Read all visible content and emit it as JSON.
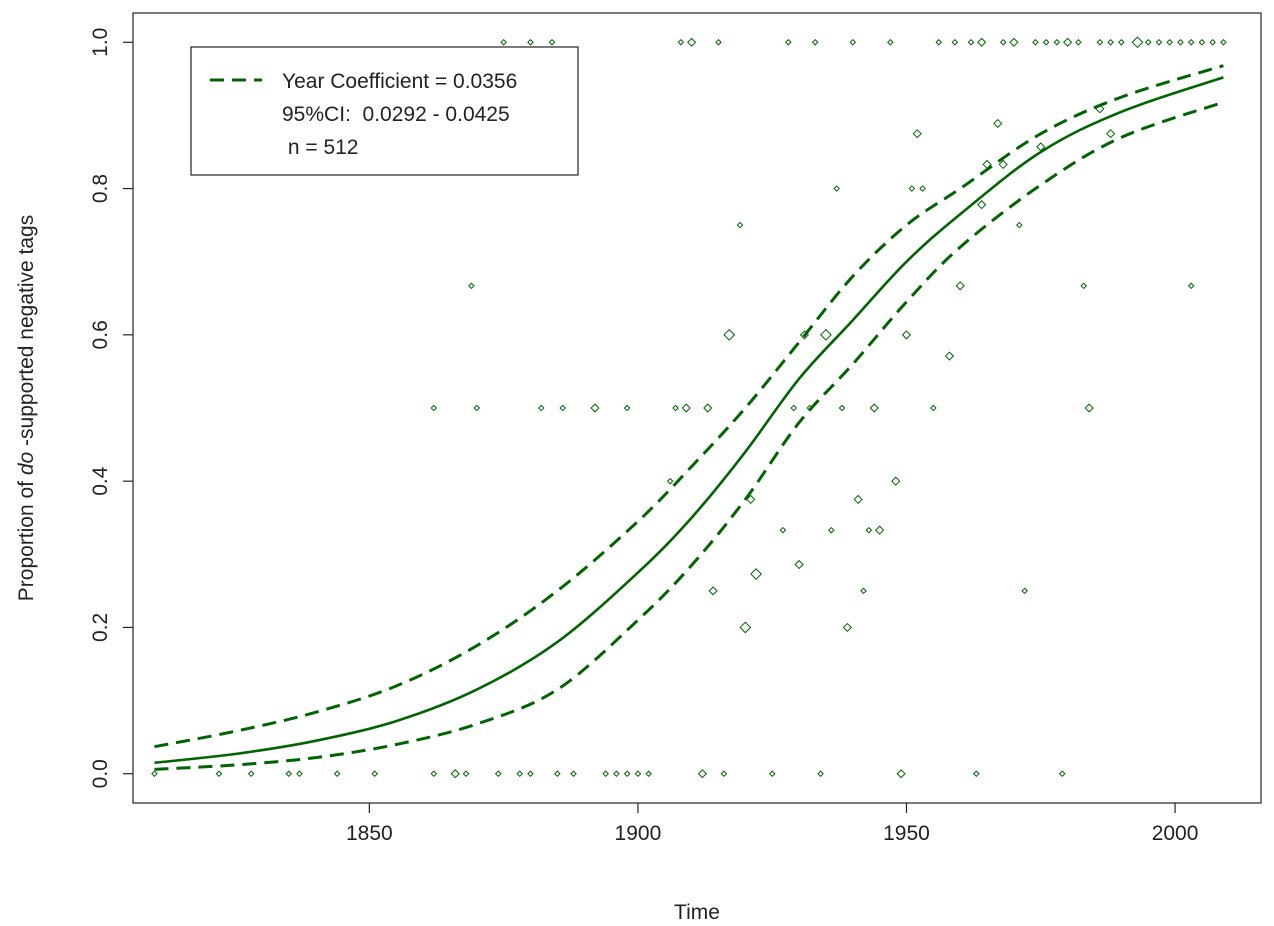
{
  "chart_data": {
    "type": "scatter",
    "title": "",
    "xlabel": "Time",
    "ylabel_prefix": "Proportion of ",
    "ylabel_italic": "do",
    "ylabel_suffix": " -supported negative tags",
    "xlim": [
      1806,
      2016
    ],
    "ylim": [
      -0.04,
      1.04
    ],
    "x_ticks": [
      1850,
      1900,
      1950,
      2000
    ],
    "y_ticks": [
      0.0,
      0.2,
      0.4,
      0.6,
      0.8,
      1.0
    ],
    "y_tick_labels": [
      "0.0",
      "0.2",
      "0.4",
      "0.6",
      "0.8",
      "1.0"
    ],
    "grid": false,
    "color": "#006400",
    "legend": {
      "position": "top-left",
      "lines": [
        "Year Coefficient = 0.0356",
        "95%CI:  0.0292 - 0.0425",
        " n = 512"
      ]
    },
    "model": {
      "type": "logistic",
      "year_coefficient": 0.0356,
      "ci_low": 0.0292,
      "ci_high": 0.0425,
      "n": 512,
      "x_range": [
        1810,
        2009
      ]
    },
    "fit_curve": {
      "x": [
        1810,
        1825,
        1840,
        1855,
        1870,
        1885,
        1900,
        1910,
        1920,
        1930,
        1940,
        1950,
        1960,
        1975,
        1990,
        2009
      ],
      "y": [
        0.015,
        0.027,
        0.045,
        0.072,
        0.115,
        0.18,
        0.275,
        0.35,
        0.44,
        0.54,
        0.62,
        0.7,
        0.765,
        0.85,
        0.905,
        0.952
      ]
    },
    "ci_upper": {
      "x": [
        1810,
        1825,
        1840,
        1855,
        1870,
        1885,
        1900,
        1910,
        1920,
        1930,
        1940,
        1950,
        1960,
        1975,
        1990,
        2009
      ],
      "y": [
        0.037,
        0.058,
        0.084,
        0.12,
        0.175,
        0.25,
        0.345,
        0.42,
        0.5,
        0.59,
        0.68,
        0.75,
        0.8,
        0.875,
        0.925,
        0.968
      ]
    },
    "ci_lower": {
      "x": [
        1810,
        1825,
        1840,
        1855,
        1870,
        1885,
        1900,
        1910,
        1920,
        1930,
        1940,
        1950,
        1960,
        1975,
        1990,
        2009
      ],
      "y": [
        0.006,
        0.012,
        0.022,
        0.04,
        0.068,
        0.115,
        0.21,
        0.285,
        0.375,
        0.48,
        0.56,
        0.645,
        0.72,
        0.805,
        0.87,
        0.918
      ]
    },
    "points": [
      {
        "x": 1810,
        "y": 0,
        "size": 1
      },
      {
        "x": 1822,
        "y": 0,
        "size": 1
      },
      {
        "x": 1828,
        "y": 0,
        "size": 1
      },
      {
        "x": 1835,
        "y": 0,
        "size": 1
      },
      {
        "x": 1837,
        "y": 0,
        "size": 1
      },
      {
        "x": 1844,
        "y": 0,
        "size": 1
      },
      {
        "x": 1851,
        "y": 0,
        "size": 1
      },
      {
        "x": 1862,
        "y": 0,
        "size": 1
      },
      {
        "x": 1866,
        "y": 0,
        "size": 1.5
      },
      {
        "x": 1868,
        "y": 0,
        "size": 1
      },
      {
        "x": 1874,
        "y": 0,
        "size": 1
      },
      {
        "x": 1878,
        "y": 0,
        "size": 1
      },
      {
        "x": 1880,
        "y": 0,
        "size": 1
      },
      {
        "x": 1885,
        "y": 0,
        "size": 1
      },
      {
        "x": 1888,
        "y": 0,
        "size": 1
      },
      {
        "x": 1894,
        "y": 0,
        "size": 1
      },
      {
        "x": 1896,
        "y": 0,
        "size": 1
      },
      {
        "x": 1898,
        "y": 0,
        "size": 1
      },
      {
        "x": 1900,
        "y": 0,
        "size": 1
      },
      {
        "x": 1902,
        "y": 0,
        "size": 1
      },
      {
        "x": 1912,
        "y": 0,
        "size": 1.5
      },
      {
        "x": 1916,
        "y": 0,
        "size": 1
      },
      {
        "x": 1925,
        "y": 0,
        "size": 1
      },
      {
        "x": 1934,
        "y": 0,
        "size": 1
      },
      {
        "x": 1949,
        "y": 0,
        "size": 1.5
      },
      {
        "x": 1963,
        "y": 0,
        "size": 1
      },
      {
        "x": 1979,
        "y": 0,
        "size": 1
      },
      {
        "x": 1875,
        "y": 1,
        "size": 1
      },
      {
        "x": 1880,
        "y": 1,
        "size": 1
      },
      {
        "x": 1884,
        "y": 1,
        "size": 1
      },
      {
        "x": 1908,
        "y": 1,
        "size": 1
      },
      {
        "x": 1910,
        "y": 1,
        "size": 1.5
      },
      {
        "x": 1915,
        "y": 1,
        "size": 1
      },
      {
        "x": 1928,
        "y": 1,
        "size": 1
      },
      {
        "x": 1933,
        "y": 1,
        "size": 1
      },
      {
        "x": 1940,
        "y": 1,
        "size": 1
      },
      {
        "x": 1947,
        "y": 1,
        "size": 1
      },
      {
        "x": 1956,
        "y": 1,
        "size": 1
      },
      {
        "x": 1959,
        "y": 1,
        "size": 1
      },
      {
        "x": 1962,
        "y": 1,
        "size": 1
      },
      {
        "x": 1964,
        "y": 1,
        "size": 1.5
      },
      {
        "x": 1968,
        "y": 1,
        "size": 1
      },
      {
        "x": 1970,
        "y": 1,
        "size": 1.5
      },
      {
        "x": 1974,
        "y": 1,
        "size": 1
      },
      {
        "x": 1976,
        "y": 1,
        "size": 1
      },
      {
        "x": 1978,
        "y": 1,
        "size": 1
      },
      {
        "x": 1980,
        "y": 1,
        "size": 1.5
      },
      {
        "x": 1982,
        "y": 1,
        "size": 1
      },
      {
        "x": 1986,
        "y": 1,
        "size": 1
      },
      {
        "x": 1988,
        "y": 1,
        "size": 1
      },
      {
        "x": 1990,
        "y": 1,
        "size": 1
      },
      {
        "x": 1993,
        "y": 1,
        "size": 2
      },
      {
        "x": 1995,
        "y": 1,
        "size": 1
      },
      {
        "x": 1997,
        "y": 1,
        "size": 1
      },
      {
        "x": 1999,
        "y": 1,
        "size": 1
      },
      {
        "x": 2001,
        "y": 1,
        "size": 1
      },
      {
        "x": 2003,
        "y": 1,
        "size": 1
      },
      {
        "x": 2005,
        "y": 1,
        "size": 1
      },
      {
        "x": 2007,
        "y": 1,
        "size": 1
      },
      {
        "x": 2009,
        "y": 1,
        "size": 1
      },
      {
        "x": 1862,
        "y": 0.5,
        "size": 1
      },
      {
        "x": 1870,
        "y": 0.5,
        "size": 1
      },
      {
        "x": 1882,
        "y": 0.5,
        "size": 1
      },
      {
        "x": 1886,
        "y": 0.5,
        "size": 1
      },
      {
        "x": 1892,
        "y": 0.5,
        "size": 1.5
      },
      {
        "x": 1898,
        "y": 0.5,
        "size": 1
      },
      {
        "x": 1907,
        "y": 0.5,
        "size": 1
      },
      {
        "x": 1909,
        "y": 0.5,
        "size": 1.5
      },
      {
        "x": 1913,
        "y": 0.5,
        "size": 1.5
      },
      {
        "x": 1929,
        "y": 0.5,
        "size": 1
      },
      {
        "x": 1932,
        "y": 0.5,
        "size": 1
      },
      {
        "x": 1938,
        "y": 0.5,
        "size": 1
      },
      {
        "x": 1944,
        "y": 0.5,
        "size": 1.5
      },
      {
        "x": 1955,
        "y": 0.5,
        "size": 1
      },
      {
        "x": 1984,
        "y": 0.5,
        "size": 1.5
      },
      {
        "x": 1869,
        "y": 0.667,
        "size": 1
      },
      {
        "x": 1960,
        "y": 0.667,
        "size": 1.5
      },
      {
        "x": 1983,
        "y": 0.667,
        "size": 1
      },
      {
        "x": 2003,
        "y": 0.667,
        "size": 1
      },
      {
        "x": 1919,
        "y": 0.75,
        "size": 1
      },
      {
        "x": 1971,
        "y": 0.75,
        "size": 1
      },
      {
        "x": 1937,
        "y": 0.8,
        "size": 1
      },
      {
        "x": 1951,
        "y": 0.8,
        "size": 1
      },
      {
        "x": 1953,
        "y": 0.8,
        "size": 1
      },
      {
        "x": 1917,
        "y": 0.6,
        "size": 2
      },
      {
        "x": 1931,
        "y": 0.6,
        "size": 1.5
      },
      {
        "x": 1935,
        "y": 0.6,
        "size": 2
      },
      {
        "x": 1950,
        "y": 0.6,
        "size": 1.5
      },
      {
        "x": 1958,
        "y": 0.571,
        "size": 1.5
      },
      {
        "x": 1952,
        "y": 0.875,
        "size": 1.5
      },
      {
        "x": 1967,
        "y": 0.889,
        "size": 1.5
      },
      {
        "x": 1965,
        "y": 0.833,
        "size": 1.5
      },
      {
        "x": 1968,
        "y": 0.833,
        "size": 1.5
      },
      {
        "x": 1964,
        "y": 0.778,
        "size": 1.5
      },
      {
        "x": 1975,
        "y": 0.857,
        "size": 1.5
      },
      {
        "x": 1986,
        "y": 0.909,
        "size": 1.5
      },
      {
        "x": 1988,
        "y": 0.875,
        "size": 1.5
      },
      {
        "x": 1906,
        "y": 0.4,
        "size": 1
      },
      {
        "x": 1948,
        "y": 0.4,
        "size": 1.5
      },
      {
        "x": 1921,
        "y": 0.375,
        "size": 1.5
      },
      {
        "x": 1941,
        "y": 0.375,
        "size": 1.5
      },
      {
        "x": 1927,
        "y": 0.333,
        "size": 1
      },
      {
        "x": 1936,
        "y": 0.333,
        "size": 1
      },
      {
        "x": 1943,
        "y": 0.333,
        "size": 1
      },
      {
        "x": 1945,
        "y": 0.333,
        "size": 1.5
      },
      {
        "x": 1930,
        "y": 0.286,
        "size": 1.5
      },
      {
        "x": 1922,
        "y": 0.273,
        "size": 2
      },
      {
        "x": 1914,
        "y": 0.25,
        "size": 1.5
      },
      {
        "x": 1942,
        "y": 0.25,
        "size": 1
      },
      {
        "x": 1972,
        "y": 0.25,
        "size": 1
      },
      {
        "x": 1920,
        "y": 0.2,
        "size": 2
      },
      {
        "x": 1939,
        "y": 0.2,
        "size": 1.5
      }
    ]
  }
}
